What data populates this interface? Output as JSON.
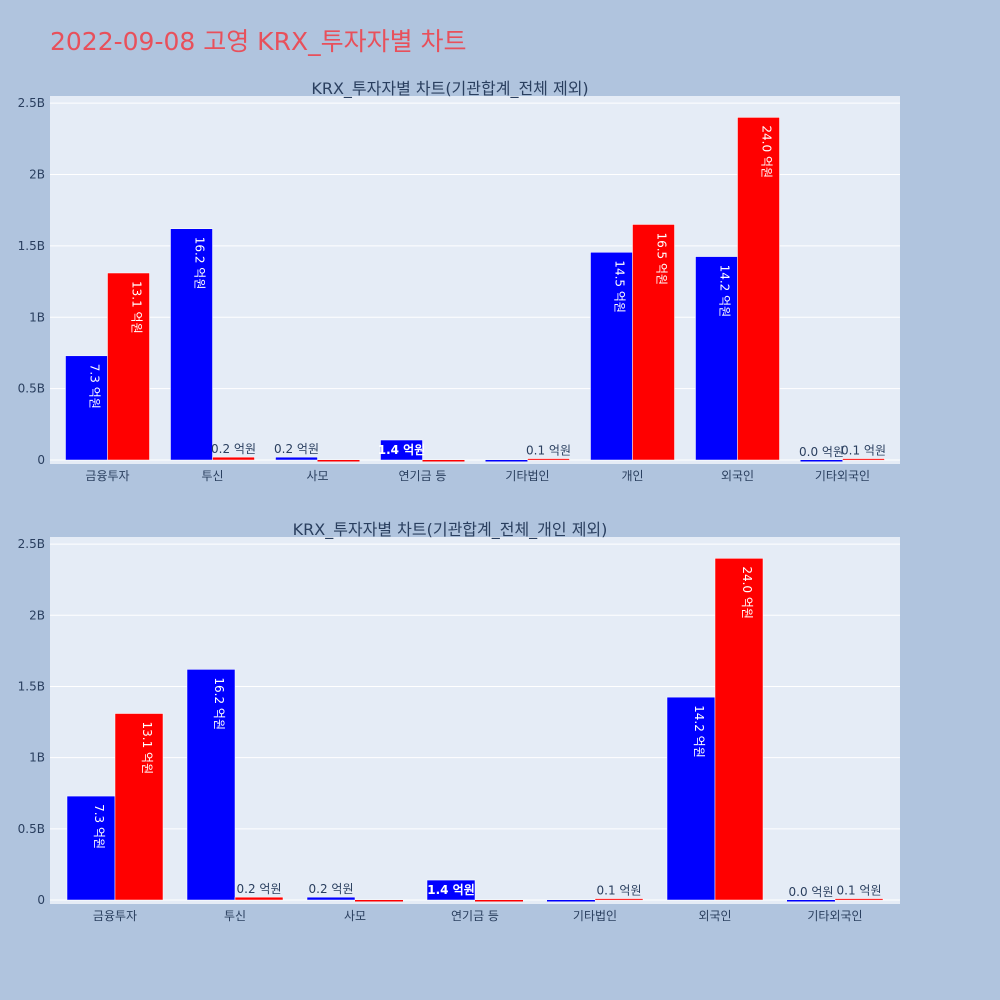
{
  "page": {
    "title": "2022-09-08 고영 KRX_투자자별 차트"
  },
  "colors": {
    "background": "#b0c4de",
    "plot_background": "#e5ecf6",
    "sell": "#0000ff",
    "buy": "#ff0000",
    "title": "#e8505b"
  },
  "chart_data": [
    {
      "type": "bar",
      "title": "KRX_투자자별 차트(기관합계_전체 제외)",
      "categories": [
        "금융투자",
        "투신",
        "사모",
        "연기금 등",
        "기타법인",
        "개인",
        "외국인",
        "기타외국인"
      ],
      "series": [
        {
          "values": [
            0.73,
            1.62,
            0.02,
            0.14,
            0.0,
            1.455,
            1.425,
            0.0
          ],
          "labels": [
            "7.3 억원",
            "16.2 억원",
            "0.2 억원",
            "1.4 억원",
            "",
            "14.5 억원",
            "14.2 억원",
            "0.0 억원"
          ]
        },
        {
          "values": [
            1.31,
            0.02,
            0.0,
            0.0,
            0.01,
            1.65,
            2.4,
            0.01
          ],
          "labels": [
            "13.1 억원",
            "0.2 억원",
            "",
            "",
            "0.1 억원",
            "16.5 억원",
            "24.0 억원",
            "0.1 억원"
          ]
        }
      ],
      "ylim": [
        0,
        2.55
      ],
      "yticks": [
        0,
        0.5,
        1,
        1.5,
        2,
        2.5
      ],
      "ytick_labels": [
        "0",
        "0.5B",
        "1B",
        "1.5B",
        "2B",
        "2.5B"
      ],
      "grid": true
    },
    {
      "type": "bar",
      "title": "KRX_투자자별 차트(기관합계_전체_개인 제외)",
      "categories": [
        "금융투자",
        "투신",
        "사모",
        "연기금 등",
        "기타법인",
        "외국인",
        "기타외국인"
      ],
      "series": [
        {
          "values": [
            0.73,
            1.62,
            0.02,
            0.14,
            0.0,
            1.425,
            0.0
          ],
          "labels": [
            "7.3 억원",
            "16.2 억원",
            "0.2 억원",
            "1.4 억원",
            "",
            "14.2 억원",
            "0.0 억원"
          ]
        },
        {
          "values": [
            1.31,
            0.02,
            0.0,
            0.0,
            0.01,
            2.4,
            0.01
          ],
          "labels": [
            "13.1 억원",
            "0.2 억원",
            "",
            "",
            "0.1 억원",
            "24.0 억원",
            "0.1 억원"
          ]
        }
      ],
      "ylim": [
        0,
        2.55
      ],
      "yticks": [
        0,
        0.5,
        1,
        1.5,
        2,
        2.5
      ],
      "ytick_labels": [
        "0",
        "0.5B",
        "1B",
        "1.5B",
        "2B",
        "2.5B"
      ],
      "grid": true
    }
  ]
}
